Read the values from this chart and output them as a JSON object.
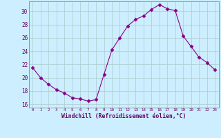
{
  "x": [
    0,
    1,
    2,
    3,
    4,
    5,
    6,
    7,
    8,
    9,
    10,
    11,
    12,
    13,
    14,
    15,
    16,
    17,
    18,
    19,
    20,
    21,
    22,
    23
  ],
  "y": [
    21.5,
    20.0,
    19.0,
    18.2,
    17.7,
    17.0,
    16.8,
    16.5,
    16.7,
    20.5,
    24.2,
    26.0,
    27.8,
    28.8,
    29.3,
    30.3,
    31.0,
    30.4,
    30.1,
    26.3,
    24.7,
    23.1,
    22.3,
    21.2
  ],
  "line_color": "#880088",
  "marker": "D",
  "marker_size": 2.5,
  "bg_color": "#cceeff",
  "grid_color": "#aacccc",
  "xlabel": "Windchill (Refroidissement éolien,°C)",
  "xlabel_color": "#660066",
  "tick_color": "#660066",
  "ylim": [
    15.5,
    31.5
  ],
  "xlim": [
    -0.5,
    23.5
  ],
  "yticks": [
    16,
    18,
    20,
    22,
    24,
    26,
    28,
    30
  ],
  "xticks": [
    0,
    1,
    2,
    3,
    4,
    5,
    6,
    7,
    8,
    9,
    10,
    11,
    12,
    13,
    14,
    15,
    16,
    17,
    18,
    19,
    20,
    21,
    22,
    23
  ]
}
